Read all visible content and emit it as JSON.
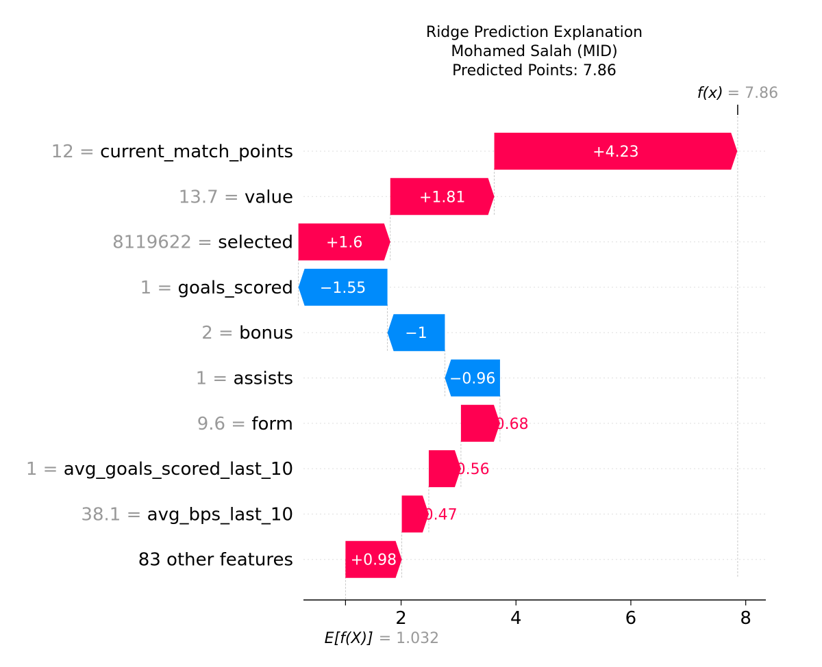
{
  "chart_data": {
    "type": "waterfall",
    "title_lines": [
      "Ridge Prediction Explanation",
      "Mohamed Salah (MID)",
      "Predicted Points: 7.86"
    ],
    "base_value": 1.032,
    "base_label_prefix": "E[f(X)]",
    "base_label_value": "= 1.032",
    "final_value": 7.86,
    "final_label_prefix": "f(x)",
    "final_label_value": "= 7.86",
    "xlim": [
      0.3,
      8.35
    ],
    "xticks": [
      2,
      4,
      6,
      8
    ],
    "colors": {
      "positive": "#ff0051",
      "negative": "#008bfb",
      "muted_text": "#999999",
      "guide": "#bbbbbb"
    },
    "features": [
      {
        "value_text": "12",
        "name": "current_match_points",
        "shap": 4.23,
        "label": "+4.23"
      },
      {
        "value_text": "13.7",
        "name": "value",
        "shap": 1.81,
        "label": "+1.81"
      },
      {
        "value_text": "8119622",
        "name": "selected",
        "shap": 1.6,
        "label": "+1.6"
      },
      {
        "value_text": "1",
        "name": "goals_scored",
        "shap": -1.55,
        "label": "−1.55"
      },
      {
        "value_text": "2",
        "name": "bonus",
        "shap": -1.0,
        "label": "−1"
      },
      {
        "value_text": "1",
        "name": "assists",
        "shap": -0.96,
        "label": "−0.96"
      },
      {
        "value_text": "9.6",
        "name": "form",
        "shap": 0.68,
        "label": "+0.68"
      },
      {
        "value_text": "1",
        "name": "avg_goals_scored_last_10",
        "shap": 0.56,
        "label": "+0.56"
      },
      {
        "value_text": "38.1",
        "name": "avg_bps_last_10",
        "shap": 0.47,
        "label": "+0.47"
      },
      {
        "value_text": "",
        "name": "83 other features",
        "shap": 0.98,
        "label": "+0.98"
      }
    ]
  }
}
